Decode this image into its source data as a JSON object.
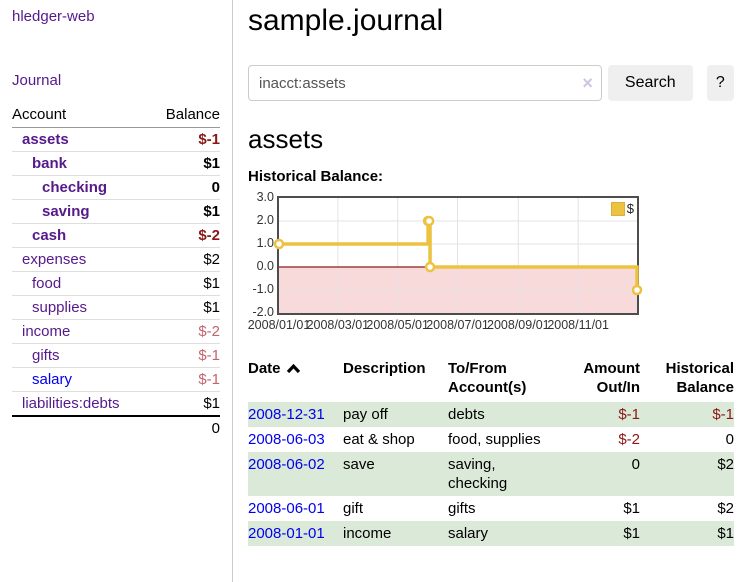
{
  "colors": {
    "link_visited": "#551a8b",
    "link_unvisited": "#0000ee",
    "negative_strong": "#8b1717",
    "negative_soft": "#c4646c",
    "row_shade_green": "#dbead8",
    "chart_line": "#edc240",
    "chart_negative_region": "#f9dada",
    "chart_zero_line": "#8b1a1a"
  },
  "app": {
    "title": "hledger-web"
  },
  "sidebar": {
    "journal_link": "Journal",
    "table": {
      "headers": [
        "Account",
        "Balance"
      ],
      "rows": [
        {
          "name": "assets",
          "balance": "$-1",
          "indent": 1,
          "bold": true,
          "neg": "strong",
          "link": "visited"
        },
        {
          "name": "bank",
          "balance": "$1",
          "indent": 2,
          "bold": true,
          "neg": null,
          "link": "visited"
        },
        {
          "name": "checking",
          "balance": "0",
          "indent": 3,
          "bold": true,
          "neg": null,
          "link": "visited"
        },
        {
          "name": "saving",
          "balance": "$1",
          "indent": 3,
          "bold": true,
          "neg": null,
          "link": "visited"
        },
        {
          "name": "cash",
          "balance": "$-2",
          "indent": 2,
          "bold": true,
          "neg": "strong",
          "link": "visited"
        },
        {
          "name": "expenses",
          "balance": "$2",
          "indent": 1,
          "bold": false,
          "neg": null,
          "link": "visited"
        },
        {
          "name": "food",
          "balance": "$1",
          "indent": 2,
          "bold": false,
          "neg": null,
          "link": "visited"
        },
        {
          "name": "supplies",
          "balance": "$1",
          "indent": 2,
          "bold": false,
          "neg": null,
          "link": "visited"
        },
        {
          "name": "income",
          "balance": "$-2",
          "indent": 1,
          "bold": false,
          "neg": "soft",
          "link": "visited"
        },
        {
          "name": "gifts",
          "balance": "$-1",
          "indent": 2,
          "bold": false,
          "neg": "soft",
          "link": "visited"
        },
        {
          "name": "salary",
          "balance": "$-1",
          "indent": 2,
          "bold": false,
          "neg": "soft",
          "link": "unvisited"
        },
        {
          "name": "liabilities:debts",
          "balance": "$1",
          "indent": 1,
          "bold": false,
          "neg": null,
          "link": "visited"
        }
      ],
      "total": "0"
    }
  },
  "main": {
    "title": "sample.journal",
    "search": {
      "value": "inacct:assets",
      "clear_icon": "×",
      "button_label": "Search",
      "help_label": "?"
    },
    "account_heading": "assets",
    "chart_label": "Historical Balance:",
    "register": {
      "headers": [
        "Date",
        "Description",
        "To/From Account(s)",
        "Amount Out/In",
        "Historical Balance"
      ],
      "sort_icon": "chevron-up",
      "rows": [
        {
          "date": "2008-12-31",
          "description": "pay off",
          "accounts": "debts",
          "amount": "$-1",
          "balance": "$-1",
          "amount_negative": true,
          "balance_negative": true,
          "shade": true
        },
        {
          "date": "2008-06-03",
          "description": "eat & shop",
          "accounts": "food, supplies",
          "amount": "$-2",
          "balance": "0",
          "amount_negative": true,
          "balance_negative": false,
          "shade": false
        },
        {
          "date": "2008-06-02",
          "description": "save",
          "accounts": "saving, checking",
          "amount": "0",
          "balance": "$2",
          "amount_negative": false,
          "balance_negative": false,
          "shade": true
        },
        {
          "date": "2008-06-01",
          "description": "gift",
          "accounts": "gifts",
          "amount": "$1",
          "balance": "$2",
          "amount_negative": false,
          "balance_negative": false,
          "shade": false
        },
        {
          "date": "2008-01-01",
          "description": "income",
          "accounts": "salary",
          "amount": "$1",
          "balance": "$1",
          "amount_negative": false,
          "balance_negative": false,
          "shade": true
        }
      ]
    }
  },
  "chart_data": {
    "type": "line",
    "title": "Historical Balance",
    "steps": true,
    "series": [
      {
        "name": "$",
        "color": "#edc240",
        "points": [
          [
            "2008-01-01",
            1
          ],
          [
            "2008-06-01",
            2
          ],
          [
            "2008-06-02",
            2
          ],
          [
            "2008-06-03",
            0
          ],
          [
            "2008-12-31",
            -1
          ]
        ]
      }
    ],
    "xlim": [
      "2008-01-01",
      "2008-12-31"
    ],
    "ylim": [
      -2,
      3
    ],
    "x_ticks": [
      "2008/01/01",
      "2008/03/01",
      "2008/05/01",
      "2008/07/01",
      "2008/09/01",
      "2008/11/01"
    ],
    "y_ticks": [
      3.0,
      2.0,
      1.0,
      0.0,
      -1.0,
      -2.0
    ],
    "grid": true,
    "legend_position": "top-right",
    "negative_region_shaded": true
  }
}
